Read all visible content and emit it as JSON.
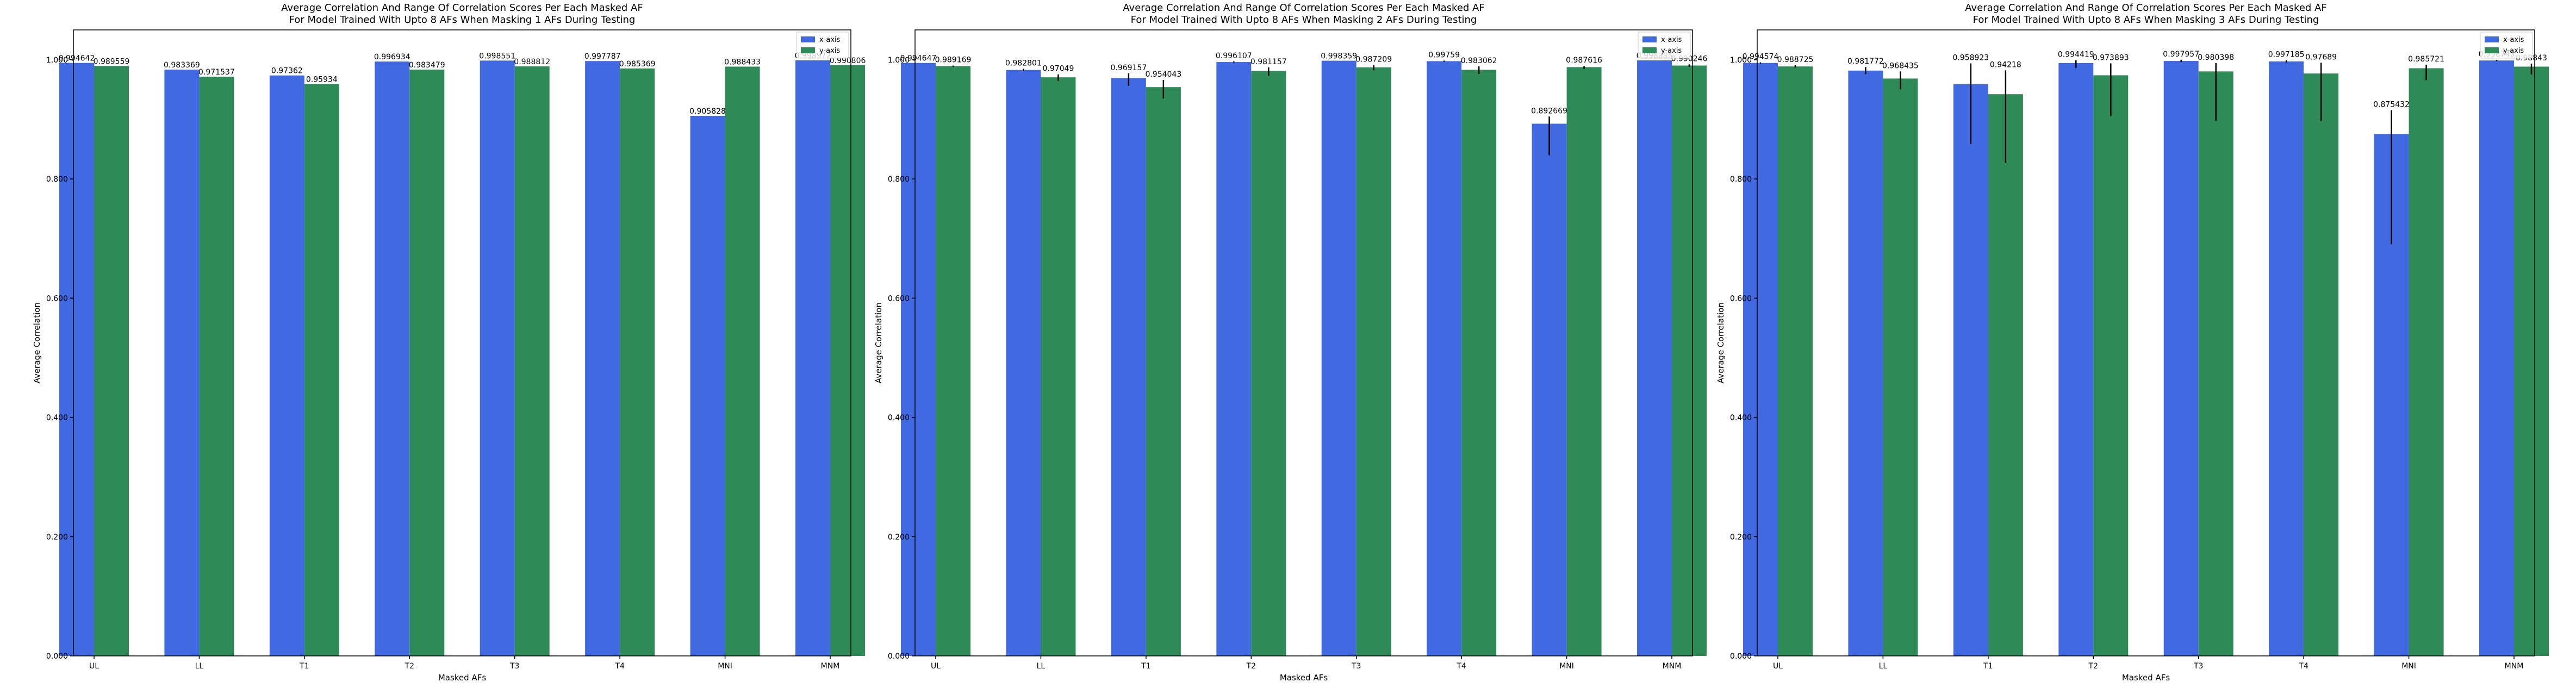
{
  "colors": {
    "x_axis": "#4169e1",
    "y_axis": "#2e8b57",
    "error_bar": "#000000"
  },
  "chart_data": [
    {
      "type": "bar",
      "title": "Average Correlation And Range Of Correlation Scores Per Each Masked AF",
      "subtitle": "For Model Trained With Upto 8 AFs When Masking 1 AFs During Testing",
      "xlabel": "Masked AFs",
      "ylabel": "Average Correlation",
      "ylim": [
        0,
        1.05
      ],
      "yticks": [
        "0.000",
        "0.200",
        "0.400",
        "0.600",
        "0.800",
        "1.000"
      ],
      "grid": false,
      "legend_position": "top-right",
      "categories": [
        "UL",
        "LL",
        "T1",
        "T2",
        "T3",
        "T4",
        "MNI",
        "MNM"
      ],
      "series": [
        {
          "name": "x-axis",
          "values": [
            0.994642,
            0.983369,
            0.97362,
            0.996934,
            0.998551,
            0.997787,
            0.905828,
            0.998972
          ],
          "labels": [
            "0.994642",
            "0.983369",
            "0.97362",
            "0.996934",
            "0.998551",
            "0.997787",
            "0.905828",
            "0.998972"
          ],
          "err_low": [
            0,
            0,
            0,
            0,
            0,
            0,
            0,
            0
          ],
          "err_high": [
            0,
            0,
            0,
            0,
            0,
            0,
            0,
            0
          ]
        },
        {
          "name": "y-axis",
          "values": [
            0.989559,
            0.971537,
            0.95934,
            0.983479,
            0.988812,
            0.985369,
            0.988433,
            0.990806
          ],
          "labels": [
            "0.989559",
            "0.971537",
            "0.95934",
            "0.983479",
            "0.988812",
            "0.985369",
            "0.988433",
            "0.990806"
          ],
          "err_low": [
            0,
            0,
            0,
            0,
            0,
            0,
            0,
            0
          ],
          "err_high": [
            0,
            0,
            0,
            0,
            0,
            0,
            0,
            0
          ]
        }
      ]
    },
    {
      "type": "bar",
      "title": "Average Correlation And Range Of Correlation Scores Per Each Masked AF",
      "subtitle": "For Model Trained With Upto 8 AFs When Masking 2 AFs During Testing",
      "xlabel": "Masked AFs",
      "ylabel": "Average Correlation",
      "ylim": [
        0,
        1.05
      ],
      "yticks": [
        "0.000",
        "0.200",
        "0.400",
        "0.600",
        "0.800",
        "1.000"
      ],
      "grid": false,
      "legend_position": "top-right",
      "categories": [
        "UL",
        "LL",
        "T1",
        "T2",
        "T3",
        "T4",
        "MNI",
        "MNM"
      ],
      "series": [
        {
          "name": "x-axis",
          "values": [
            0.994647,
            0.982801,
            0.969157,
            0.996107,
            0.998359,
            0.99759,
            0.892669,
            0.998885
          ],
          "labels": [
            "0.994647",
            "0.982801",
            "0.969157",
            "0.996107",
            "0.998359",
            "0.99759",
            "0.892669",
            "0.998885"
          ],
          "err_low": [
            0,
            0.002,
            0.013,
            0.001,
            0,
            0.001,
            0.053,
            0
          ],
          "err_high": [
            0,
            0.002,
            0.008,
            0.001,
            0,
            0.001,
            0.012,
            0
          ]
        },
        {
          "name": "y-axis",
          "values": [
            0.989169,
            0.97049,
            0.954043,
            0.981157,
            0.987209,
            0.983062,
            0.987616,
            0.990246
          ],
          "labels": [
            "0.989169",
            "0.97049",
            "0.954043",
            "0.981157",
            "0.987209",
            "0.983062",
            "0.987616",
            "0.990246"
          ],
          "err_low": [
            0.001,
            0.006,
            0.019,
            0.008,
            0.005,
            0.007,
            0.003,
            0.002
          ],
          "err_high": [
            0.001,
            0.005,
            0.012,
            0.006,
            0.004,
            0.006,
            0.002,
            0.002
          ]
        }
      ]
    },
    {
      "type": "bar",
      "title": "Average Correlation And Range Of Correlation Scores Per Each Masked AF",
      "subtitle": "For Model Trained With Upto 8 AFs When Masking 3 AFs During Testing",
      "xlabel": "Masked AFs",
      "ylabel": "Average Correlation",
      "ylim": [
        0,
        1.05
      ],
      "yticks": [
        "0.000",
        "0.200",
        "0.400",
        "0.600",
        "0.800",
        "1.000"
      ],
      "grid": false,
      "legend_position": "top-right",
      "categories": [
        "UL",
        "LL",
        "T1",
        "T2",
        "T3",
        "T4",
        "MNI",
        "MNM"
      ],
      "series": [
        {
          "name": "x-axis",
          "values": [
            0.994574,
            0.981772,
            0.958923,
            0.994419,
            0.997957,
            0.997185,
            0.875432,
            0.998743
          ],
          "labels": [
            "0.994574",
            "0.981772",
            "0.958923",
            "0.994419",
            "0.997957",
            "0.997185",
            "0.875432",
            "0.998743"
          ],
          "err_low": [
            0.001,
            0.006,
            0.1,
            0.008,
            0.002,
            0.002,
            0.185,
            0.001
          ],
          "err_high": [
            0.001,
            0.006,
            0.035,
            0.005,
            0.002,
            0.002,
            0.04,
            0.001
          ]
        },
        {
          "name": "y-axis",
          "values": [
            0.988725,
            0.968435,
            0.94218,
            0.973893,
            0.980398,
            0.97689,
            0.985721,
            0.98843
          ],
          "labels": [
            "0.988725",
            "0.968435",
            "0.94218",
            "0.973893",
            "0.980398",
            "0.97689",
            "0.985721",
            "0.98843"
          ],
          "err_low": [
            0.002,
            0.018,
            0.115,
            0.068,
            0.083,
            0.08,
            0.02,
            0.013
          ],
          "err_high": [
            0.002,
            0.012,
            0.04,
            0.02,
            0.014,
            0.018,
            0.006,
            0.005
          ]
        }
      ]
    }
  ]
}
